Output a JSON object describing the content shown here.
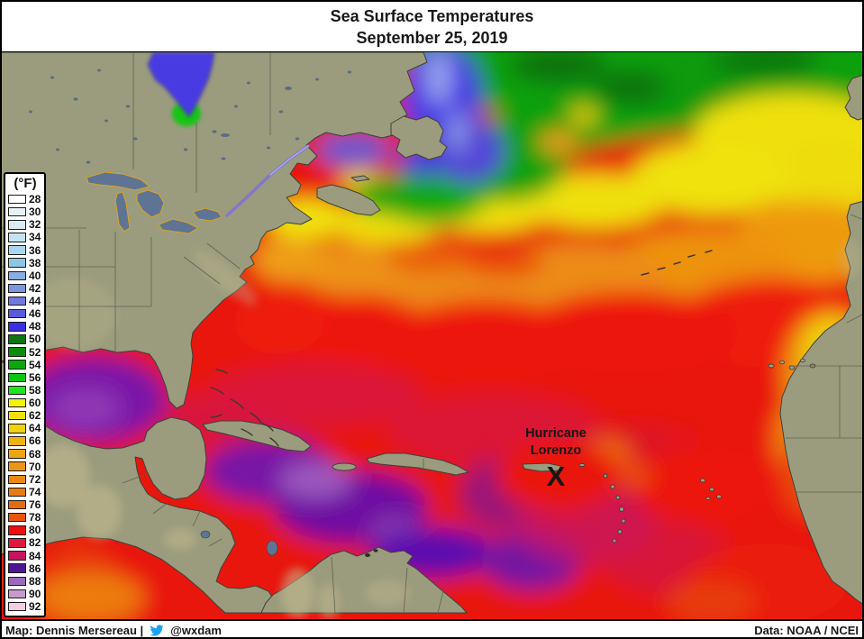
{
  "title": {
    "line1": "Sea Surface Temperatures",
    "line2": "September 25, 2019"
  },
  "legend": {
    "unit_label": "(°F)",
    "entries": [
      {
        "value": "28",
        "color": "#FFFFFF"
      },
      {
        "value": "30",
        "color": "#E7F2F8"
      },
      {
        "value": "32",
        "color": "#D9EBF4"
      },
      {
        "value": "34",
        "color": "#C5E2F0"
      },
      {
        "value": "36",
        "color": "#ABD6EB"
      },
      {
        "value": "38",
        "color": "#8FC7E2"
      },
      {
        "value": "40",
        "color": "#86AEE0"
      },
      {
        "value": "42",
        "color": "#7B97DC"
      },
      {
        "value": "44",
        "color": "#7179DE"
      },
      {
        "value": "46",
        "color": "#5A5BDA"
      },
      {
        "value": "48",
        "color": "#3B2FE4"
      },
      {
        "value": "50",
        "color": "#0E7412"
      },
      {
        "value": "52",
        "color": "#0C8C0C"
      },
      {
        "value": "54",
        "color": "#0BA80B"
      },
      {
        "value": "56",
        "color": "#0EC611"
      },
      {
        "value": "58",
        "color": "#1FE421"
      },
      {
        "value": "60",
        "color": "#F2F20D"
      },
      {
        "value": "62",
        "color": "#F0E30D"
      },
      {
        "value": "64",
        "color": "#EFD110"
      },
      {
        "value": "66",
        "color": "#EDB513"
      },
      {
        "value": "68",
        "color": "#ECA513"
      },
      {
        "value": "70",
        "color": "#EB9713"
      },
      {
        "value": "72",
        "color": "#EA8913"
      },
      {
        "value": "74",
        "color": "#E97B12"
      },
      {
        "value": "76",
        "color": "#E86B10"
      },
      {
        "value": "78",
        "color": "#E7560E"
      },
      {
        "value": "80",
        "color": "#F00D0D"
      },
      {
        "value": "82",
        "color": "#DC1A40"
      },
      {
        "value": "84",
        "color": "#C51560"
      },
      {
        "value": "86",
        "color": "#4F1694"
      },
      {
        "value": "88",
        "color": "#9A68BC"
      },
      {
        "value": "90",
        "color": "#C79ACE"
      },
      {
        "value": "92",
        "color": "#F2CEDE"
      }
    ]
  },
  "map": {
    "hurricane": {
      "label_line1": "Hurricane",
      "label_line2": "Lorenzo",
      "marker": "X"
    },
    "land_color": "#9A9C7D",
    "lake_color": "#5F7495"
  },
  "footer": {
    "credit_prefix": "Map: Dennis Mersereau |",
    "twitter_handle": "@wxdam",
    "twitter_blue": "#1DA1F2",
    "data_source": "Data: NOAA / NCEI"
  }
}
